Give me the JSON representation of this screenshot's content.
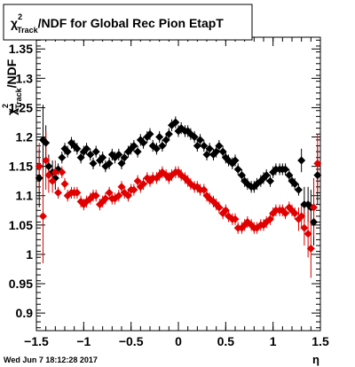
{
  "chart_data": {
    "type": "scatter",
    "title_parts": {
      "chi": "χ",
      "sup": "2",
      "sub": "Track",
      "rest": "/NDF for Global Rec Pion EtapT"
    },
    "ylabel_parts": {
      "chi": "χ",
      "sup": "2",
      "sub": "Track",
      "rest": "/NDF"
    },
    "xlabel": "η",
    "footer": "Wed Jun  7 18:12:28 2017",
    "xlim": [
      -1.5,
      1.5
    ],
    "ylim": [
      0.87,
      1.37
    ],
    "x_ticks": [
      -1.5,
      -1,
      -0.5,
      0,
      0.5,
      1,
      1.5
    ],
    "x_tick_labels": [
      "−1.5",
      "−1",
      "−0.5",
      "0",
      "0.5",
      "1",
      "1.5"
    ],
    "y_ticks": [
      0.9,
      0.95,
      1,
      1.05,
      1.1,
      1.15,
      1.2,
      1.25,
      1.3,
      1.35
    ],
    "y_tick_labels": [
      "0.9",
      "0.95",
      "1",
      "1.05",
      "1.1",
      "1.15",
      "1.2",
      "1.25",
      "1.3",
      "1.35"
    ],
    "colors": {
      "black_series": "#000000",
      "red_series": "#e00000"
    },
    "series": [
      {
        "marker": "diamond",
        "color": "#000000",
        "x": [
          -1.47,
          -1.43,
          -1.4,
          -1.37,
          -1.33,
          -1.3,
          -1.27,
          -1.23,
          -1.2,
          -1.17,
          -1.13,
          -1.1,
          -1.07,
          -1.03,
          -1.0,
          -0.97,
          -0.93,
          -0.9,
          -0.87,
          -0.83,
          -0.8,
          -0.77,
          -0.73,
          -0.7,
          -0.67,
          -0.63,
          -0.6,
          -0.57,
          -0.53,
          -0.5,
          -0.47,
          -0.43,
          -0.4,
          -0.37,
          -0.33,
          -0.3,
          -0.27,
          -0.23,
          -0.2,
          -0.17,
          -0.13,
          -0.1,
          -0.07,
          -0.03,
          0.0,
          0.03,
          0.07,
          0.1,
          0.13,
          0.17,
          0.2,
          0.23,
          0.27,
          0.3,
          0.33,
          0.37,
          0.4,
          0.43,
          0.47,
          0.5,
          0.53,
          0.57,
          0.6,
          0.63,
          0.67,
          0.7,
          0.73,
          0.77,
          0.8,
          0.83,
          0.87,
          0.9,
          0.93,
          0.97,
          1.0,
          1.03,
          1.07,
          1.1,
          1.13,
          1.17,
          1.2,
          1.23,
          1.27,
          1.3,
          1.33,
          1.37,
          1.4,
          1.43,
          1.47
        ],
        "y": [
          1.13,
          1.195,
          1.19,
          1.15,
          1.14,
          1.13,
          1.145,
          1.165,
          1.18,
          1.175,
          1.19,
          1.185,
          1.18,
          1.165,
          1.175,
          1.18,
          1.17,
          1.155,
          1.175,
          1.16,
          1.165,
          1.15,
          1.155,
          1.17,
          1.165,
          1.17,
          1.155,
          1.165,
          1.175,
          1.18,
          1.185,
          1.175,
          1.195,
          1.19,
          1.2,
          1.205,
          1.185,
          1.18,
          1.2,
          1.185,
          1.195,
          1.205,
          1.22,
          1.225,
          1.21,
          1.215,
          1.21,
          1.21,
          1.205,
          1.2,
          1.185,
          1.195,
          1.185,
          1.17,
          1.18,
          1.17,
          1.175,
          1.185,
          1.175,
          1.165,
          1.16,
          1.155,
          1.16,
          1.145,
          1.135,
          1.125,
          1.12,
          1.115,
          1.115,
          1.12,
          1.125,
          1.13,
          1.135,
          1.125,
          1.14,
          1.145,
          1.145,
          1.145,
          1.145,
          1.135,
          1.125,
          1.12,
          1.11,
          1.16,
          1.085,
          1.085,
          1.08,
          1.055,
          1.135
        ],
        "err": [
          0.05,
          0.06,
          0.03,
          0.02,
          0.02,
          0.02,
          0.01,
          0.01,
          0.01,
          0.01,
          0.01,
          0.01,
          0.01,
          0.01,
          0.01,
          0.01,
          0.01,
          0.01,
          0.01,
          0.01,
          0.01,
          0.01,
          0.01,
          0.01,
          0.01,
          0.01,
          0.01,
          0.01,
          0.01,
          0.01,
          0.01,
          0.01,
          0.01,
          0.01,
          0.01,
          0.01,
          0.01,
          0.01,
          0.01,
          0.01,
          0.01,
          0.01,
          0.01,
          0.01,
          0.01,
          0.01,
          0.01,
          0.01,
          0.01,
          0.01,
          0.01,
          0.01,
          0.01,
          0.01,
          0.01,
          0.01,
          0.01,
          0.01,
          0.01,
          0.01,
          0.01,
          0.01,
          0.01,
          0.01,
          0.01,
          0.01,
          0.01,
          0.01,
          0.01,
          0.01,
          0.01,
          0.01,
          0.01,
          0.01,
          0.01,
          0.01,
          0.01,
          0.01,
          0.01,
          0.01,
          0.01,
          0.01,
          0.01,
          0.02,
          0.03,
          0.03,
          0.03,
          0.04,
          0.05
        ]
      },
      {
        "marker": "diamond",
        "color": "#e00000",
        "x": [
          -1.47,
          -1.43,
          -1.4,
          -1.37,
          -1.33,
          -1.3,
          -1.27,
          -1.23,
          -1.2,
          -1.17,
          -1.13,
          -1.1,
          -1.07,
          -1.03,
          -1.0,
          -0.97,
          -0.93,
          -0.9,
          -0.87,
          -0.83,
          -0.8,
          -0.77,
          -0.73,
          -0.7,
          -0.67,
          -0.63,
          -0.6,
          -0.57,
          -0.53,
          -0.5,
          -0.47,
          -0.43,
          -0.4,
          -0.37,
          -0.33,
          -0.3,
          -0.27,
          -0.23,
          -0.2,
          -0.17,
          -0.13,
          -0.1,
          -0.07,
          -0.03,
          0.0,
          0.03,
          0.07,
          0.1,
          0.13,
          0.17,
          0.2,
          0.23,
          0.27,
          0.3,
          0.33,
          0.37,
          0.4,
          0.43,
          0.47,
          0.5,
          0.53,
          0.57,
          0.6,
          0.63,
          0.67,
          0.7,
          0.73,
          0.77,
          0.8,
          0.83,
          0.87,
          0.9,
          0.93,
          0.97,
          1.0,
          1.03,
          1.07,
          1.1,
          1.13,
          1.17,
          1.2,
          1.23,
          1.27,
          1.3,
          1.33,
          1.37,
          1.4,
          1.43,
          1.47
        ],
        "y": [
          1.15,
          1.065,
          1.16,
          1.135,
          1.125,
          1.14,
          1.105,
          1.14,
          1.12,
          1.1,
          1.105,
          1.105,
          1.105,
          1.09,
          1.085,
          1.09,
          1.095,
          1.1,
          1.1,
          1.085,
          1.09,
          1.095,
          1.105,
          1.095,
          1.095,
          1.1,
          1.115,
          1.105,
          1.1,
          1.11,
          1.11,
          1.125,
          1.115,
          1.12,
          1.13,
          1.125,
          1.13,
          1.13,
          1.135,
          1.14,
          1.135,
          1.13,
          1.135,
          1.14,
          1.14,
          1.135,
          1.13,
          1.125,
          1.12,
          1.115,
          1.115,
          1.11,
          1.11,
          1.1,
          1.095,
          1.09,
          1.085,
          1.08,
          1.07,
          1.075,
          1.065,
          1.06,
          1.06,
          1.045,
          1.045,
          1.05,
          1.055,
          1.05,
          1.045,
          1.045,
          1.05,
          1.05,
          1.055,
          1.06,
          1.07,
          1.075,
          1.075,
          1.075,
          1.07,
          1.08,
          1.075,
          1.07,
          1.06,
          1.065,
          1.045,
          1.035,
          1.01,
          1.08,
          1.155
        ],
        "err": [
          0.04,
          0.08,
          0.05,
          0.03,
          0.02,
          0.02,
          0.01,
          0.01,
          0.01,
          0.01,
          0.01,
          0.01,
          0.01,
          0.01,
          0.01,
          0.01,
          0.01,
          0.01,
          0.01,
          0.01,
          0.01,
          0.01,
          0.01,
          0.01,
          0.01,
          0.01,
          0.01,
          0.01,
          0.01,
          0.01,
          0.01,
          0.01,
          0.01,
          0.01,
          0.01,
          0.01,
          0.01,
          0.01,
          0.01,
          0.01,
          0.01,
          0.01,
          0.01,
          0.01,
          0.01,
          0.01,
          0.01,
          0.01,
          0.01,
          0.01,
          0.01,
          0.01,
          0.01,
          0.01,
          0.01,
          0.01,
          0.01,
          0.01,
          0.01,
          0.01,
          0.01,
          0.01,
          0.01,
          0.01,
          0.01,
          0.01,
          0.01,
          0.01,
          0.01,
          0.01,
          0.01,
          0.01,
          0.01,
          0.01,
          0.01,
          0.01,
          0.01,
          0.01,
          0.01,
          0.01,
          0.01,
          0.01,
          0.02,
          0.02,
          0.03,
          0.04,
          0.05,
          0.05,
          0.05
        ]
      }
    ]
  }
}
